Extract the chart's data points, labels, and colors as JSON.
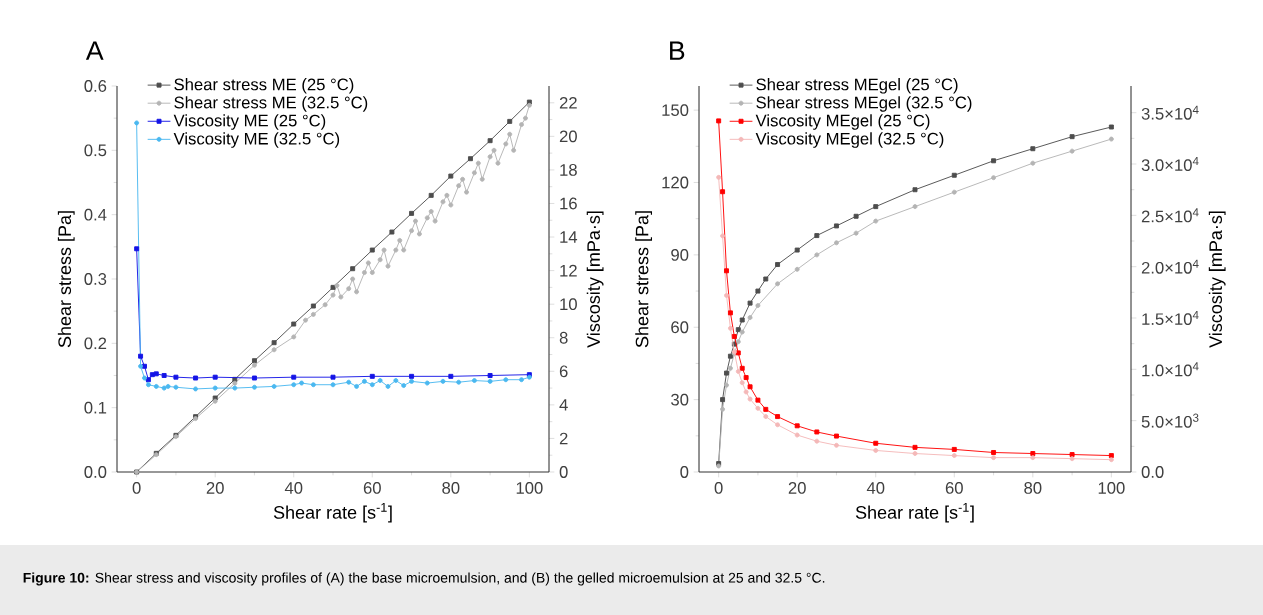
{
  "chart_data": [
    {
      "type": "line",
      "title": "A",
      "xlabel": "Shear rate [s$^{-1}$]",
      "ylabel": "Shear stress [Pa]",
      "y2label": "Viscosity [mPa·s]",
      "xlim": [
        -5,
        105
      ],
      "xticks": [
        0,
        20,
        40,
        60,
        80,
        100
      ],
      "ylim": [
        0,
        0.6
      ],
      "yticks": [
        {
          "value": 0,
          "label": "0.0"
        },
        0.1,
        0.2,
        0.3,
        0.4,
        0.5,
        0.6
      ],
      "y2lim": [
        0,
        23
      ],
      "y2ticks": [
        0,
        2,
        4,
        6,
        8,
        10,
        12,
        14,
        16,
        18,
        20,
        22
      ],
      "legend": "top left",
      "line_style": "solid",
      "annotations": [
        "**Figure 10:** Shear stress and viscosity profiles of (A) the base microemulsion, and (B) the gelled microemulsion at 25 and 32.5 °C."
      ],
      "series": [
        {
          "name": "Shear stress ME (25 °C)",
          "color": "#4d4d4d",
          "marker": "square",
          "x": [
            0,
            5,
            10,
            15,
            20,
            25,
            30,
            35,
            40,
            45,
            50,
            55,
            60,
            65,
            70,
            75,
            80,
            85,
            90,
            95,
            100
          ],
          "values": [
            0,
            0.029,
            0.057,
            0.086,
            0.115,
            0.144,
            0.173,
            0.201,
            0.23,
            0.258,
            0.287,
            0.316,
            0.345,
            0.373,
            0.402,
            0.43,
            0.46,
            0.487,
            0.515,
            0.545,
            0.575
          ]
        },
        {
          "name": "Shear stress ME (32.5 °C)",
          "color": "#b4b4b4",
          "marker": "circle",
          "x": [
            0,
            5,
            10,
            15,
            20,
            25,
            30,
            35,
            40,
            43,
            45,
            48,
            50,
            51,
            52,
            54,
            55,
            56,
            58,
            59,
            60,
            62,
            63,
            64,
            66,
            67,
            68,
            70,
            71,
            72,
            74,
            75,
            76,
            78,
            79,
            80,
            82,
            83,
            84,
            86,
            87,
            88,
            90,
            91,
            92,
            94,
            95,
            96,
            98,
            99,
            100
          ],
          "values": [
            0,
            0.027,
            0.055,
            0.083,
            0.11,
            0.138,
            0.166,
            0.19,
            0.21,
            0.236,
            0.245,
            0.26,
            0.275,
            0.29,
            0.272,
            0.285,
            0.3,
            0.28,
            0.31,
            0.325,
            0.31,
            0.33,
            0.345,
            0.32,
            0.345,
            0.36,
            0.345,
            0.375,
            0.39,
            0.37,
            0.395,
            0.405,
            0.39,
            0.42,
            0.43,
            0.415,
            0.445,
            0.455,
            0.435,
            0.465,
            0.48,
            0.455,
            0.49,
            0.5,
            0.48,
            0.51,
            0.525,
            0.5,
            0.54,
            0.55,
            0.57
          ]
        },
        {
          "name": "Viscosity ME (25 °C)",
          "color": "#1414e6",
          "marker": "square",
          "axis": "y2",
          "x": [
            0,
            1,
            2,
            3,
            4,
            5,
            7,
            10,
            15,
            20,
            30,
            40,
            50,
            60,
            70,
            80,
            90,
            100
          ],
          "values": [
            13.3,
            6.9,
            6.3,
            5.5,
            5.8,
            5.85,
            5.75,
            5.65,
            5.6,
            5.65,
            5.6,
            5.65,
            5.65,
            5.7,
            5.7,
            5.7,
            5.75,
            5.8
          ]
        },
        {
          "name": "Viscosity ME (32.5 °C)",
          "color": "#4ab8f0",
          "marker": "circle",
          "axis": "y2",
          "x": [
            0,
            1,
            2,
            3,
            5,
            7,
            8,
            10,
            15,
            20,
            25,
            30,
            35,
            40,
            42,
            45,
            50,
            54,
            56,
            58,
            60,
            62,
            64,
            66,
            68,
            70,
            74,
            78,
            82,
            86,
            90,
            94,
            98,
            100
          ],
          "values": [
            20.8,
            6.3,
            5.6,
            5.2,
            5.1,
            5.0,
            5.1,
            5.05,
            4.95,
            5.0,
            5.0,
            5.05,
            5.1,
            5.2,
            5.3,
            5.2,
            5.2,
            5.35,
            5.1,
            5.4,
            5.2,
            5.45,
            5.1,
            5.45,
            5.15,
            5.4,
            5.3,
            5.4,
            5.35,
            5.45,
            5.4,
            5.5,
            5.5,
            5.65
          ]
        }
      ]
    },
    {
      "type": "line",
      "title": "B",
      "xlabel": "Shear rate [s$^{-1}$]",
      "ylabel": "Shear stress [Pa]",
      "y2label": "Viscosity [mPa·s]",
      "xlim": [
        -5,
        105
      ],
      "xticks": [
        0,
        20,
        40,
        60,
        80,
        100
      ],
      "ylim": [
        0,
        160
      ],
      "yticks": [
        0,
        30,
        60,
        90,
        120,
        150
      ],
      "y2lim": [
        0,
        37600
      ],
      "y2ticks": [
        {
          "value": 0,
          "label": "0.0"
        },
        {
          "value": 5000,
          "label": "5.0×10$^{3}$"
        },
        {
          "value": 10000,
          "label": "1.0×10$^{4}$"
        },
        {
          "value": 15000,
          "label": "1.5×10$^{4}$"
        },
        {
          "value": 20000,
          "label": "2.0×10$^{4}$"
        },
        {
          "value": 25000,
          "label": "2.5×10$^{4}$"
        },
        {
          "value": 30000,
          "label": "3.0×10$^{4}$"
        },
        {
          "value": 35000,
          "label": "3.5×10$^{4}$"
        }
      ],
      "legend": "top left",
      "line_style": "solid",
      "series": [
        {
          "name": "Shear stress MEgel (25 °C)",
          "color": "#4d4d4d",
          "marker": "square",
          "x": [
            0,
            1,
            2,
            3,
            4,
            5,
            6,
            8,
            10,
            12,
            15,
            20,
            25,
            30,
            35,
            40,
            50,
            60,
            70,
            80,
            90,
            100
          ],
          "values": [
            3.5,
            30,
            41,
            48,
            53,
            59,
            63,
            70,
            75,
            80,
            86,
            92,
            98,
            102,
            106,
            110,
            117,
            123,
            129,
            134,
            139,
            143
          ]
        },
        {
          "name": "Shear stress MEgel (32.5 °C)",
          "color": "#b4b4b4",
          "marker": "circle",
          "x": [
            0,
            1,
            2,
            3,
            4,
            5,
            6,
            8,
            10,
            15,
            20,
            25,
            30,
            35,
            40,
            50,
            60,
            70,
            80,
            90,
            100
          ],
          "values": [
            2.5,
            26,
            36,
            43,
            49,
            54,
            58,
            64,
            69,
            78,
            84,
            90,
            95,
            99,
            104,
            110,
            116,
            122,
            128,
            133,
            138
          ]
        },
        {
          "name": "Viscosity MEgel (25 °C)",
          "color": "#ff0000",
          "marker": "square",
          "axis": "y2",
          "x": [
            0,
            1,
            2,
            3,
            4,
            5,
            6,
            7,
            8,
            10,
            12,
            15,
            20,
            25,
            30,
            40,
            50,
            60,
            70,
            80,
            90,
            100
          ],
          "values": [
            34200,
            27300,
            19600,
            15500,
            13200,
            11600,
            10100,
            9200,
            8300,
            7000,
            6100,
            5400,
            4500,
            3900,
            3500,
            2800,
            2400,
            2200,
            1900,
            1800,
            1700,
            1600
          ]
        },
        {
          "name": "Viscosity MEgel (32.5 °C)",
          "color": "#f4b8b8",
          "marker": "circle",
          "axis": "y2",
          "x": [
            0,
            1,
            2,
            3,
            4,
            5,
            6,
            7,
            8,
            10,
            12,
            15,
            20,
            25,
            30,
            40,
            50,
            60,
            70,
            80,
            90,
            100
          ],
          "values": [
            28700,
            23000,
            17200,
            14000,
            11700,
            9800,
            8700,
            7800,
            7100,
            6200,
            5400,
            4600,
            3600,
            3000,
            2600,
            2100,
            1800,
            1600,
            1400,
            1400,
            1300,
            1200
          ]
        }
      ]
    }
  ]
}
